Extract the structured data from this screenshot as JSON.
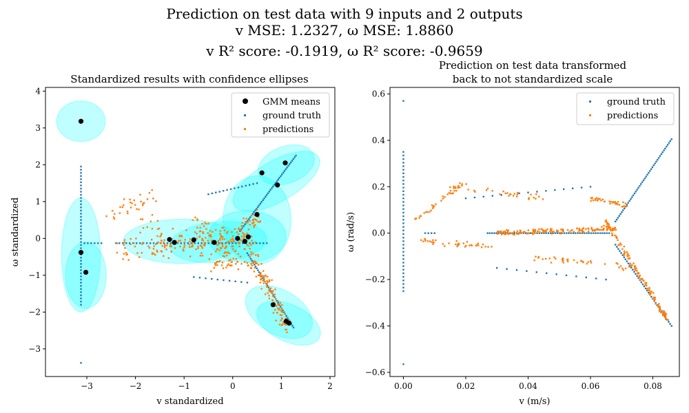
{
  "suptitle": {
    "line1": "Prediction on test data with 9 inputs and 2 outputs",
    "line2": "v MSE: 1.2327, ω MSE: 1.8860",
    "line3": "v R² score: -0.1919, ω R² score: -0.9659"
  },
  "colors": {
    "ground_truth": "#1f77b4",
    "predictions": "#ff7f0e",
    "gmm_means": "#000000",
    "ellipse": "#00ffff"
  },
  "chart_data": [
    {
      "type": "scatter",
      "title": "Standardized results with confidence ellipses",
      "xlabel": "v standardized",
      "ylabel": "ω standardized",
      "xlim": [
        -3.85,
        2.1
      ],
      "ylim": [
        -3.75,
        4.1
      ],
      "xticks": [
        -3,
        -2,
        -1,
        0,
        1,
        2
      ],
      "yticks": [
        -3,
        -2,
        -1,
        0,
        1,
        2,
        3,
        4
      ],
      "legend": {
        "placement": "upper-right",
        "entries": [
          "GMM means",
          "ground truth",
          "predictions"
        ]
      },
      "gmm_means": [
        [
          -3.12,
          3.18
        ],
        [
          -3.12,
          -0.38
        ],
        [
          -3.02,
          -0.92
        ],
        [
          -1.3,
          -0.03
        ],
        [
          -1.2,
          -0.11
        ],
        [
          -0.8,
          -0.04
        ],
        [
          -0.38,
          -0.11
        ],
        [
          0.1,
          0.0
        ],
        [
          0.25,
          -0.08
        ],
        [
          0.32,
          0.04
        ],
        [
          0.5,
          0.65
        ],
        [
          0.6,
          1.78
        ],
        [
          0.92,
          1.45
        ],
        [
          1.08,
          2.05
        ],
        [
          0.83,
          -1.8
        ],
        [
          1.1,
          -2.25
        ],
        [
          1.16,
          -2.3
        ]
      ],
      "ellipses": [
        {
          "cx": -3.12,
          "cy": 3.18,
          "rx": 0.5,
          "ry": 0.55,
          "angle": 0
        },
        {
          "cx": -3.12,
          "cy": -0.45,
          "rx": 0.4,
          "ry": 1.55,
          "angle": 0
        },
        {
          "cx": -3.02,
          "cy": -1.0,
          "rx": 0.42,
          "ry": 0.9,
          "angle": 0
        },
        {
          "cx": -1.05,
          "cy": -0.08,
          "rx": 1.2,
          "ry": 0.6,
          "angle": 0
        },
        {
          "cx": -0.3,
          "cy": -0.1,
          "rx": 1.0,
          "ry": 0.55,
          "angle": 5
        },
        {
          "cx": 0.3,
          "cy": 0.05,
          "rx": 0.8,
          "ry": 0.7,
          "angle": 0
        },
        {
          "cx": 0.5,
          "cy": 0.5,
          "rx": 0.7,
          "ry": 1.2,
          "angle": 0
        },
        {
          "cx": 0.9,
          "cy": 1.55,
          "rx": 1.0,
          "ry": 0.55,
          "angle": 30
        },
        {
          "cx": 1.1,
          "cy": 2.0,
          "rx": 0.6,
          "ry": 0.5,
          "angle": 20
        },
        {
          "cx": 0.95,
          "cy": -2.0,
          "rx": 0.75,
          "ry": 0.6,
          "angle": -30
        },
        {
          "cx": 1.15,
          "cy": -2.3,
          "rx": 0.7,
          "ry": 0.5,
          "angle": -25
        }
      ],
      "ground_truth_segments": [
        {
          "x0": -3.12,
          "y0": 1.95,
          "x1": -3.12,
          "y1": -1.8,
          "n": 45
        },
        {
          "x0": -3.12,
          "y0": -3.38,
          "x1": -3.12,
          "y1": -3.38,
          "n": 1
        },
        {
          "x0": -3.05,
          "y0": -0.13,
          "x1": -2.7,
          "y1": -0.13,
          "n": 6
        },
        {
          "x0": -2.4,
          "y0": -0.13,
          "x1": 0.7,
          "y1": -0.13,
          "n": 45
        },
        {
          "x0": 0.15,
          "y0": 0.2,
          "x1": 1.3,
          "y1": 2.25,
          "n": 45
        },
        {
          "x0": 0.3,
          "y0": -0.4,
          "x1": 1.25,
          "y1": -2.42,
          "n": 40
        },
        {
          "x0": -0.5,
          "y0": 1.2,
          "x1": 0.5,
          "y1": 1.5,
          "n": 14
        },
        {
          "x0": -0.8,
          "y0": -1.05,
          "x1": 0.3,
          "y1": -1.2,
          "n": 10
        }
      ],
      "prediction_segments": [
        {
          "x0": -2.55,
          "y0": 0.6,
          "x1": -1.6,
          "y1": 1.2,
          "n": 30,
          "spread": 0.15
        },
        {
          "x0": -2.3,
          "y0": -0.5,
          "x1": -1.4,
          "y1": 0.3,
          "n": 40,
          "spread": 0.3
        },
        {
          "x0": -1.6,
          "y0": -0.2,
          "x1": 0.45,
          "y1": -0.05,
          "n": 160,
          "spread": 0.18
        },
        {
          "x0": -0.8,
          "y0": 0.5,
          "x1": 0.1,
          "y1": -0.8,
          "n": 60,
          "spread": 0.25
        },
        {
          "x0": 0.0,
          "y0": 0.25,
          "x1": 0.55,
          "y1": 0.55,
          "n": 40,
          "spread": 0.1
        },
        {
          "x0": 0.35,
          "y0": -0.3,
          "x1": 1.1,
          "y1": -2.4,
          "n": 110,
          "spread": 0.15
        },
        {
          "x0": -0.5,
          "y0": -0.7,
          "x1": 0.5,
          "y1": -0.7,
          "n": 30,
          "spread": 0.12
        }
      ]
    },
    {
      "type": "scatter",
      "title_line1": "Prediction on test data transformed",
      "title_line2": "back to not standardized scale",
      "xlabel": "v (m/s)",
      "ylabel": "ω (rad/s)",
      "xlim": [
        -0.0043,
        0.0885
      ],
      "ylim": [
        -0.618,
        0.628
      ],
      "xticks": [
        0.0,
        0.02,
        0.04,
        0.06,
        0.08
      ],
      "xtick_labels": [
        "0.00",
        "0.02",
        "0.04",
        "0.06",
        "0.08"
      ],
      "yticks": [
        -0.6,
        -0.4,
        -0.2,
        0.0,
        0.2,
        0.4,
        0.6
      ],
      "ytick_labels": [
        "−0.6",
        "−0.4",
        "−0.2",
        "0.0",
        "0.2",
        "0.4",
        "0.6"
      ],
      "legend": {
        "placement": "upper-right",
        "entries": [
          "ground truth",
          "predictions"
        ]
      },
      "ground_truth_segments": [
        {
          "x0": 0.0,
          "y0": 0.35,
          "x1": 0.0,
          "y1": -0.25,
          "n": 40
        },
        {
          "x0": 0.0,
          "y0": 0.57,
          "x1": 0.0,
          "y1": 0.57,
          "n": 1
        },
        {
          "x0": 0.0,
          "y0": -0.565,
          "x1": 0.0,
          "y1": -0.565,
          "n": 1
        },
        {
          "x0": 0.007,
          "y0": 0.0,
          "x1": 0.01,
          "y1": 0.0,
          "n": 4
        },
        {
          "x0": 0.027,
          "y0": 0.0,
          "x1": 0.066,
          "y1": 0.0,
          "n": 55
        },
        {
          "x0": 0.068,
          "y0": 0.05,
          "x1": 0.086,
          "y1": 0.405,
          "n": 45
        },
        {
          "x0": 0.068,
          "y0": -0.05,
          "x1": 0.086,
          "y1": -0.4,
          "n": 40
        },
        {
          "x0": 0.02,
          "y0": 0.15,
          "x1": 0.06,
          "y1": 0.2,
          "n": 15
        },
        {
          "x0": 0.03,
          "y0": -0.15,
          "x1": 0.065,
          "y1": -0.2,
          "n": 12
        }
      ],
      "prediction_segments": [
        {
          "x0": 0.003,
          "y0": 0.05,
          "x1": 0.02,
          "y1": 0.22,
          "n": 40,
          "spread": 0.04
        },
        {
          "x0": 0.004,
          "y0": -0.03,
          "x1": 0.03,
          "y1": -0.06,
          "n": 40,
          "spread": 0.06
        },
        {
          "x0": 0.015,
          "y0": 0.2,
          "x1": 0.045,
          "y1": 0.15,
          "n": 30,
          "spread": 0.04
        },
        {
          "x0": 0.03,
          "y0": 0.0,
          "x1": 0.068,
          "y1": 0.02,
          "n": 150,
          "spread": 0.04
        },
        {
          "x0": 0.06,
          "y0": 0.15,
          "x1": 0.072,
          "y1": 0.12,
          "n": 40,
          "spread": 0.04
        },
        {
          "x0": 0.065,
          "y0": 0.05,
          "x1": 0.085,
          "y1": -0.38,
          "n": 120,
          "spread": 0.05
        },
        {
          "x0": 0.04,
          "y0": -0.1,
          "x1": 0.075,
          "y1": -0.15,
          "n": 40,
          "spread": 0.05
        }
      ]
    }
  ]
}
